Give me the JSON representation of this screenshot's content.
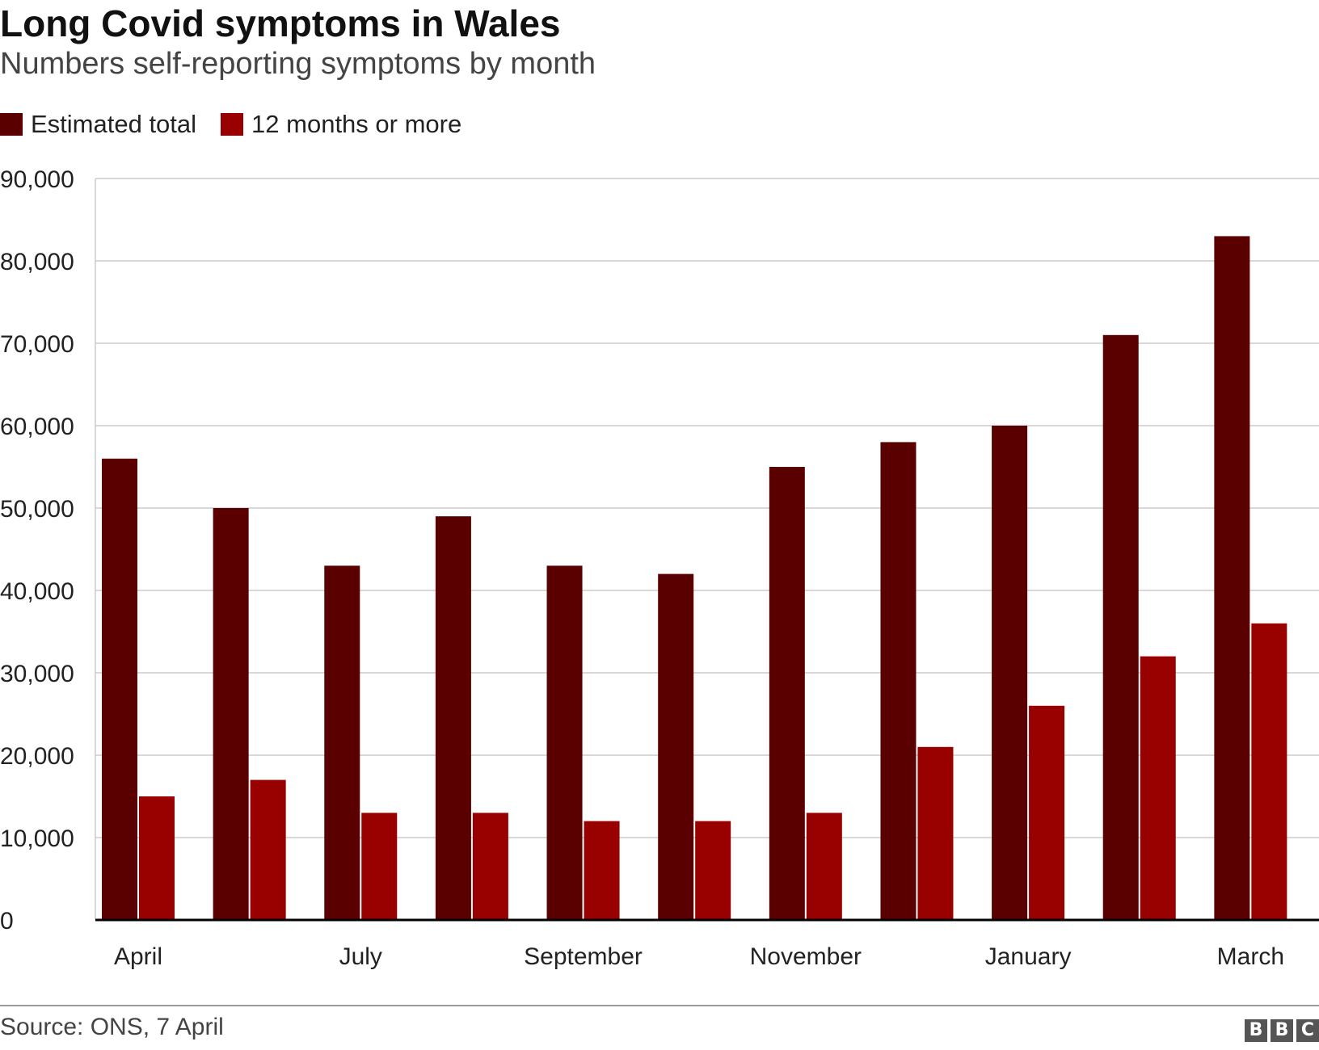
{
  "title": "Long Covid symptoms in Wales",
  "subtitle": "Numbers self-reporting symptoms by month",
  "source": "Source: ONS, 7 April",
  "logo_text": "BBC",
  "colors": {
    "estimated_total": "#5a0000",
    "twelve_months": "#990000",
    "grid": "#cccccc",
    "axis": "#000000"
  },
  "legend": [
    {
      "label": "Estimated total",
      "color": "#5a0000"
    },
    {
      "label": "12 months or more",
      "color": "#990000"
    }
  ],
  "chart_data": {
    "type": "bar",
    "title": "Long Covid symptoms in Wales",
    "subtitle": "Numbers self-reporting symptoms by month",
    "categories": [
      "April",
      "",
      "July",
      "",
      "September",
      "",
      "November",
      "",
      "January",
      "",
      "March"
    ],
    "series": [
      {
        "name": "Estimated total",
        "values": [
          56000,
          50000,
          43000,
          49000,
          43000,
          42000,
          55000,
          58000,
          60000,
          71000,
          83000
        ]
      },
      {
        "name": "12 months or more",
        "values": [
          15000,
          17000,
          13000,
          13000,
          12000,
          12000,
          13000,
          21000,
          26000,
          32000,
          36000
        ]
      }
    ],
    "yticks": [
      "0",
      "10,000",
      "20,000",
      "30,000",
      "40,000",
      "50,000",
      "60,000",
      "70,000",
      "80,000",
      "90,000"
    ],
    "ylim": [
      0,
      90000
    ],
    "grid": true,
    "legend_position": "top-left"
  }
}
